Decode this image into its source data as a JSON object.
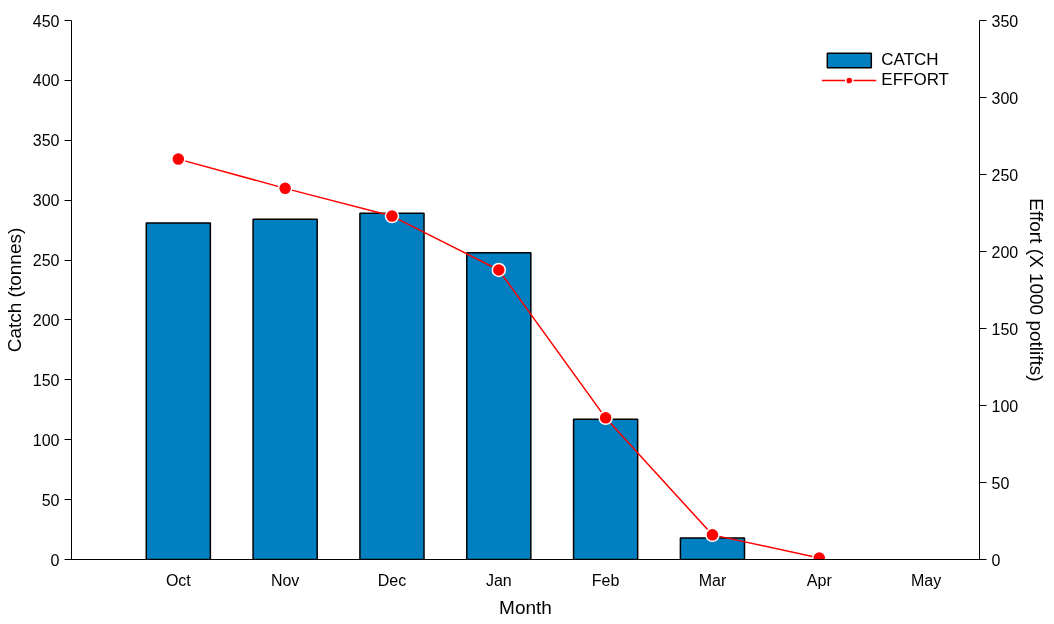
{
  "chart_data": {
    "type": "bar",
    "xlabel": "Month",
    "ylabel": "Catch (tonnes)",
    "y2label": "Effort (X 1000 potlifts)",
    "categories": [
      "Oct",
      "Nov",
      "Dec",
      "Jan",
      "Feb",
      "Mar",
      "Apr",
      "May"
    ],
    "series": [
      {
        "name": "CATCH",
        "color": "#0080c0",
        "values": [
          281,
          284,
          289,
          256,
          117,
          18,
          null,
          null
        ]
      },
      {
        "name": "EFFORT",
        "type": "line",
        "axis": "y2",
        "color": "#ff0000",
        "marker": "circle",
        "values": [
          260,
          241,
          223,
          188,
          92,
          16,
          1,
          null
        ]
      }
    ],
    "ylim": [
      0,
      450
    ],
    "yticks": [
      0,
      50,
      100,
      150,
      200,
      250,
      300,
      350,
      400,
      450
    ],
    "y2lim": [
      0,
      350
    ],
    "y2ticks": [
      0,
      50,
      100,
      150,
      200,
      250,
      300,
      350
    ],
    "grid": false,
    "legend": "top right"
  }
}
